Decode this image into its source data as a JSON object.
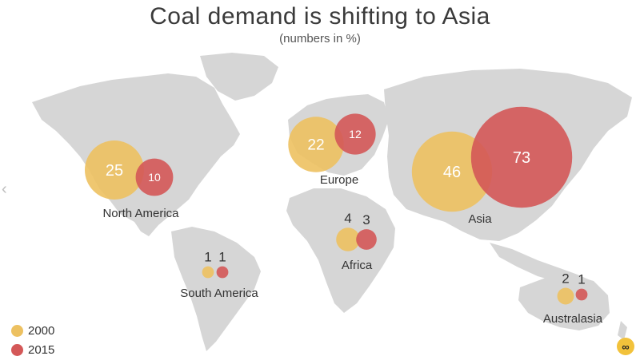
{
  "colors": {
    "year_2000": "#EDC161",
    "year_2015": "#D45858",
    "land": "#D6D6D6",
    "text": "#333333"
  },
  "chart_data": {
    "type": "bubble-map",
    "title": "Coal demand is shifting to Asia",
    "subtitle": "(numbers in %)",
    "series": [
      {
        "name": "2000",
        "color": "#EDC161"
      },
      {
        "name": "2015",
        "color": "#D45858"
      }
    ],
    "regions": [
      {
        "name": "North America",
        "v2000": 25,
        "v2015": 10
      },
      {
        "name": "Europe",
        "v2000": 22,
        "v2015": 12
      },
      {
        "name": "Asia",
        "v2000": 46,
        "v2015": 73
      },
      {
        "name": "Africa",
        "v2000": 4,
        "v2015": 3
      },
      {
        "name": "South America",
        "v2000": 1,
        "v2015": 1
      },
      {
        "name": "Australasia",
        "v2000": 2,
        "v2015": 1
      }
    ],
    "legend_position": "bottom-left"
  },
  "legend": {
    "items": [
      "2000",
      "2015"
    ]
  },
  "icons": {
    "logo": "logo-icon",
    "nav": "chevron-left-icon"
  }
}
